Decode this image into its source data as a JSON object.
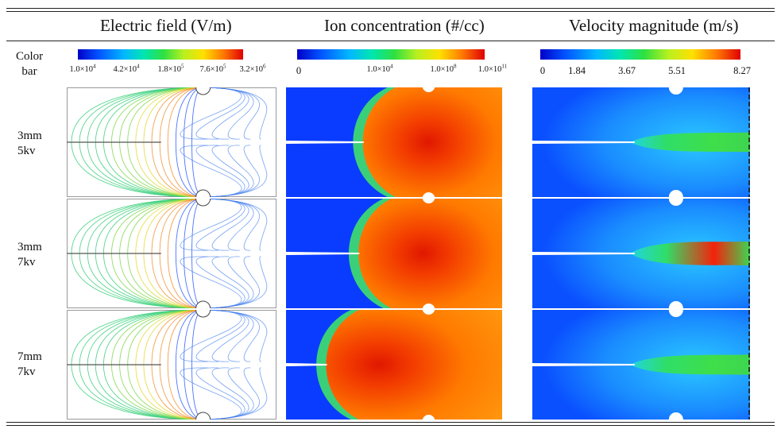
{
  "table": {
    "columns": [
      "Electric field (V/m)",
      "Ion concentration (#/cc)",
      "Velocity magnitude (m/s)"
    ],
    "colorbar_label": [
      "Color",
      "bar"
    ],
    "colorbars": [
      {
        "ticks": [
          {
            "m": "1.0×10",
            "e": "4"
          },
          {
            "m": "4.2×10",
            "e": "4"
          },
          {
            "m": "1.8×10",
            "e": "5"
          },
          {
            "m": "7.6×10",
            "e": "5"
          },
          {
            "m": "3.2×10",
            "e": "6"
          }
        ]
      },
      {
        "ticks": [
          {
            "m": "0",
            "e": ""
          },
          {
            "m": "1.0×10",
            "e": "4"
          },
          {
            "m": "1.0×10",
            "e": "8"
          },
          {
            "m": "1.0×10",
            "e": "11"
          }
        ]
      },
      {
        "ticks": [
          {
            "m": "0",
            "e": ""
          },
          {
            "m": "1.84",
            "e": ""
          },
          {
            "m": "3.67",
            "e": ""
          },
          {
            "m": "5.51",
            "e": ""
          },
          {
            "m": "8.27",
            "e": ""
          }
        ]
      }
    ],
    "rows": [
      {
        "gap": "3mm",
        "voltage": "5kv",
        "ion_front": 0.47,
        "jet_strength": 0.55
      },
      {
        "gap": "3mm",
        "voltage": "7kv",
        "ion_front": 0.45,
        "jet_strength": 1.0
      },
      {
        "gap": "7mm",
        "voltage": "7kv",
        "ion_front": 0.3,
        "jet_strength": 0.6
      }
    ]
  },
  "colors": {
    "jet_low": "#0a3cff",
    "jet_high": "#ff1a00",
    "rule": "#222222"
  }
}
